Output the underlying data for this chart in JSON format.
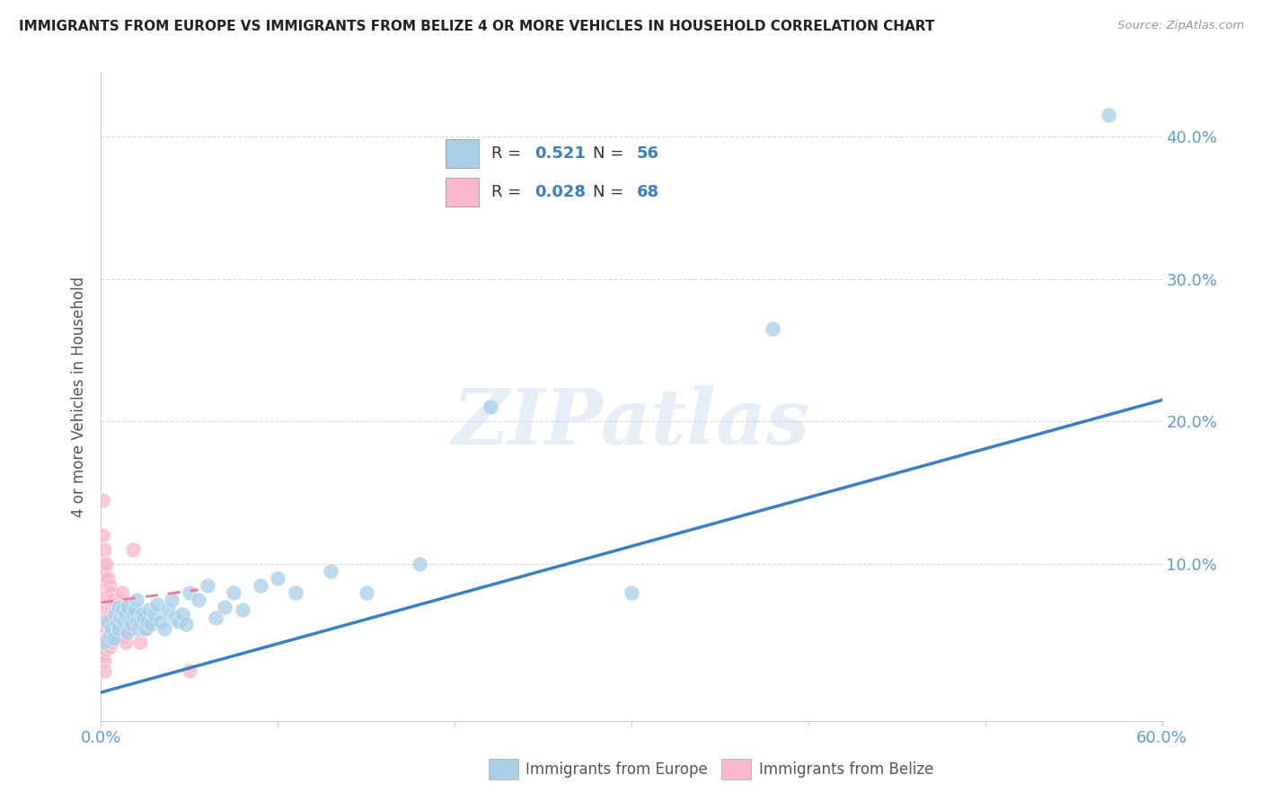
{
  "title": "IMMIGRANTS FROM EUROPE VS IMMIGRANTS FROM BELIZE 4 OR MORE VEHICLES IN HOUSEHOLD CORRELATION CHART",
  "source": "Source: ZipAtlas.com",
  "ylabel": "4 or more Vehicles in Household",
  "ytick_labels": [
    "10.0%",
    "20.0%",
    "30.0%",
    "40.0%"
  ],
  "ytick_values": [
    0.1,
    0.2,
    0.3,
    0.4
  ],
  "xlim": [
    0.0,
    0.6
  ],
  "ylim": [
    -0.01,
    0.445
  ],
  "legend_europe_r": "0.521",
  "legend_europe_n": "56",
  "legend_belize_r": "0.028",
  "legend_belize_n": "68",
  "europe_color": "#a8cfe8",
  "belize_color": "#f9b8cb",
  "europe_line_color": "#3a7fc1",
  "belize_line_color": "#e8799a",
  "watermark": "ZIPatlas",
  "europe_scatter_x": [
    0.002,
    0.004,
    0.005,
    0.006,
    0.007,
    0.008,
    0.009,
    0.01,
    0.01,
    0.011,
    0.012,
    0.013,
    0.014,
    0.015,
    0.015,
    0.016,
    0.017,
    0.018,
    0.019,
    0.02,
    0.02,
    0.021,
    0.022,
    0.023,
    0.024,
    0.025,
    0.026,
    0.027,
    0.028,
    0.03,
    0.032,
    0.034,
    0.036,
    0.038,
    0.04,
    0.042,
    0.044,
    0.046,
    0.048,
    0.05,
    0.055,
    0.06,
    0.065,
    0.07,
    0.075,
    0.08,
    0.09,
    0.1,
    0.11,
    0.13,
    0.15,
    0.18,
    0.22,
    0.3,
    0.38,
    0.57
  ],
  "europe_scatter_y": [
    0.045,
    0.06,
    0.05,
    0.055,
    0.048,
    0.065,
    0.058,
    0.07,
    0.055,
    0.062,
    0.068,
    0.06,
    0.065,
    0.07,
    0.052,
    0.06,
    0.058,
    0.065,
    0.068,
    0.06,
    0.075,
    0.055,
    0.06,
    0.065,
    0.062,
    0.055,
    0.06,
    0.068,
    0.058,
    0.065,
    0.072,
    0.06,
    0.055,
    0.068,
    0.075,
    0.062,
    0.06,
    0.065,
    0.058,
    0.08,
    0.075,
    0.085,
    0.062,
    0.07,
    0.08,
    0.068,
    0.085,
    0.09,
    0.08,
    0.095,
    0.08,
    0.1,
    0.21,
    0.08,
    0.265,
    0.415
  ],
  "belize_scatter_x": [
    0.001,
    0.001,
    0.001,
    0.001,
    0.001,
    0.001,
    0.001,
    0.001,
    0.001,
    0.001,
    0.001,
    0.001,
    0.001,
    0.002,
    0.002,
    0.002,
    0.002,
    0.002,
    0.002,
    0.002,
    0.002,
    0.002,
    0.002,
    0.002,
    0.002,
    0.003,
    0.003,
    0.003,
    0.003,
    0.003,
    0.003,
    0.003,
    0.003,
    0.004,
    0.004,
    0.004,
    0.004,
    0.004,
    0.005,
    0.005,
    0.005,
    0.005,
    0.005,
    0.005,
    0.006,
    0.006,
    0.006,
    0.006,
    0.006,
    0.007,
    0.007,
    0.007,
    0.008,
    0.008,
    0.009,
    0.009,
    0.01,
    0.01,
    0.011,
    0.012,
    0.013,
    0.014,
    0.015,
    0.018,
    0.02,
    0.022,
    0.025,
    0.05
  ],
  "belize_scatter_y": [
    0.145,
    0.12,
    0.1,
    0.095,
    0.085,
    0.075,
    0.07,
    0.065,
    0.06,
    0.055,
    0.05,
    0.045,
    0.035,
    0.11,
    0.095,
    0.085,
    0.075,
    0.068,
    0.06,
    0.055,
    0.048,
    0.042,
    0.038,
    0.032,
    0.025,
    0.1,
    0.088,
    0.078,
    0.068,
    0.06,
    0.055,
    0.048,
    0.04,
    0.09,
    0.078,
    0.068,
    0.058,
    0.048,
    0.085,
    0.075,
    0.065,
    0.058,
    0.05,
    0.042,
    0.08,
    0.07,
    0.062,
    0.055,
    0.045,
    0.075,
    0.065,
    0.055,
    0.07,
    0.06,
    0.065,
    0.055,
    0.06,
    0.05,
    0.075,
    0.08,
    0.05,
    0.045,
    0.055,
    0.11,
    0.065,
    0.045,
    0.055,
    0.025
  ],
  "europe_line_x0": 0.0,
  "europe_line_y0": 0.01,
  "europe_line_x1": 0.6,
  "europe_line_y1": 0.215,
  "belize_line_x0": 0.0,
  "belize_line_y0": 0.073,
  "belize_line_x1": 0.055,
  "belize_line_y1": 0.082,
  "grid_color": "#d8d8d8",
  "spine_color": "#cccccc",
  "tick_label_color": "#5b9bd5",
  "text_color": "#555555"
}
